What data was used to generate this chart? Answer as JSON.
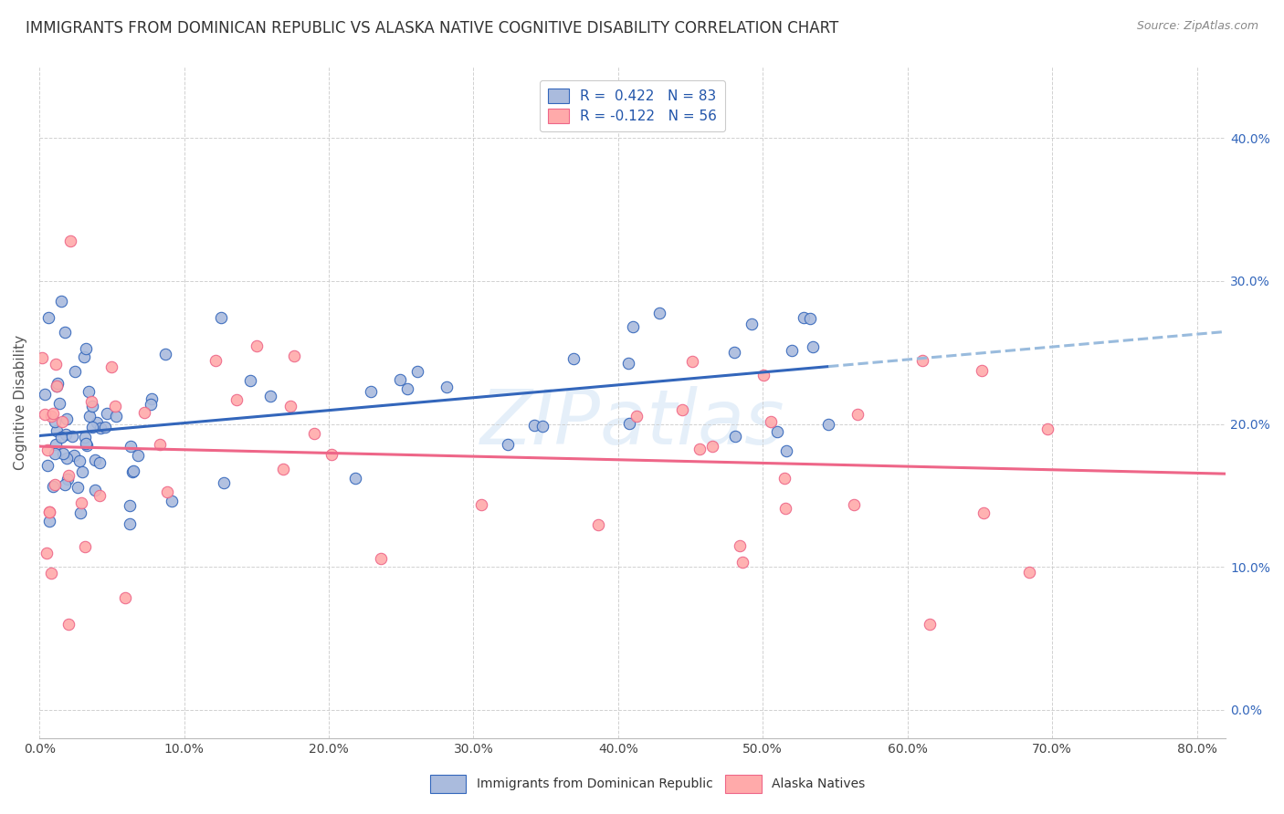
{
  "title": "IMMIGRANTS FROM DOMINICAN REPUBLIC VS ALASKA NATIVE COGNITIVE DISABILITY CORRELATION CHART",
  "source": "Source: ZipAtlas.com",
  "ylabel_label": "Cognitive Disability",
  "legend_entry1": "R =  0.422   N = 83",
  "legend_entry2": "R = -0.122   N = 56",
  "color_blue": "#AABBDD",
  "color_pink": "#FFAAAA",
  "color_blue_line": "#3366BB",
  "color_pink_line": "#EE6688",
  "color_dashed": "#99BBDD",
  "watermark": "ZIPatlas",
  "R1": 0.422,
  "N1": 83,
  "R2": -0.122,
  "N2": 56,
  "seed1": 42,
  "seed2": 99,
  "xlim": [
    0.0,
    0.82
  ],
  "ylim": [
    -0.02,
    0.45
  ],
  "title_color": "#333333",
  "title_fontsize": 12,
  "axis_label_fontsize": 11
}
